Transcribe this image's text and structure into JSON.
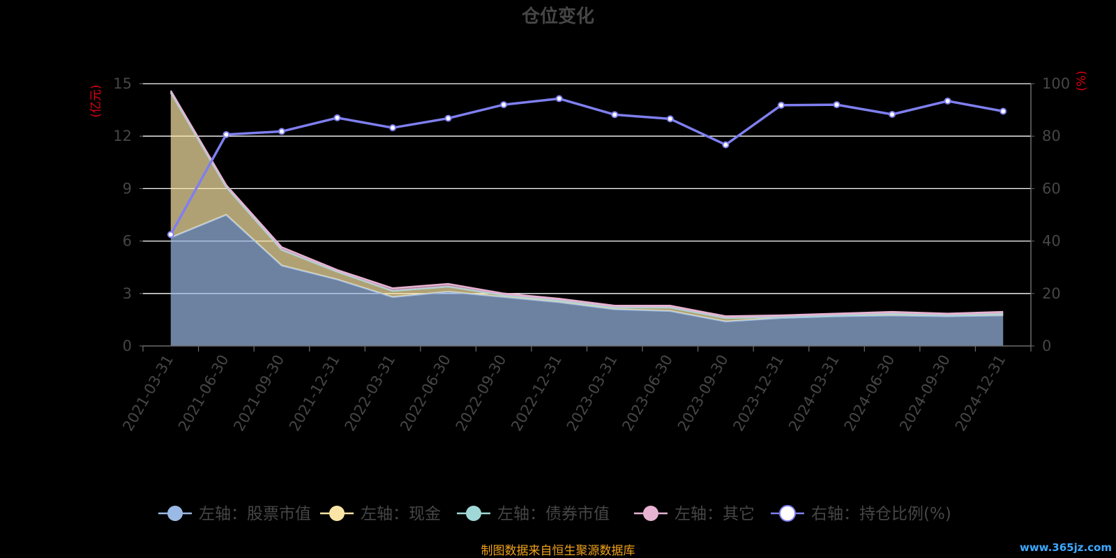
{
  "chart_data": {
    "type": "area",
    "title": "仓位变化",
    "left_unit": "(亿元)",
    "right_unit": "(%)",
    "categories": [
      "2021-03-31",
      "2021-06-30",
      "2021-09-30",
      "2021-12-31",
      "2022-03-31",
      "2022-06-30",
      "2022-09-30",
      "2022-12-31",
      "2023-03-31",
      "2023-06-30",
      "2023-09-30",
      "2023-12-31",
      "2024-03-31",
      "2024-06-30",
      "2024-09-30",
      "2024-12-31"
    ],
    "y_left": {
      "min": 0,
      "max": 15,
      "ticks": [
        "0",
        "3",
        "6",
        "9",
        "12",
        "15"
      ]
    },
    "y_right": {
      "min": 0,
      "max": 100,
      "ticks": [
        "0",
        "20",
        "40",
        "60",
        "80",
        "100"
      ]
    },
    "series": [
      {
        "name": "左轴：股票市值",
        "axis": "left",
        "kind": "area",
        "color": "#9bb9e5",
        "values": [
          6.2,
          7.5,
          4.6,
          3.8,
          2.8,
          3.1,
          2.8,
          2.5,
          2.1,
          2.0,
          1.4,
          1.6,
          1.7,
          1.75,
          1.7,
          1.75
        ]
      },
      {
        "name": "左轴：现金",
        "axis": "left",
        "kind": "area",
        "color": "#fbe5a6",
        "values": [
          8.3,
          1.6,
          0.9,
          0.45,
          0.35,
          0.3,
          0.1,
          0.1,
          0.1,
          0.2,
          0.2,
          0.05,
          0.05,
          0.1,
          0.05,
          0.1
        ]
      },
      {
        "name": "左轴：债券市值",
        "axis": "left",
        "kind": "area",
        "color": "#9fd8d7",
        "values": [
          0,
          0,
          0,
          0,
          0,
          0,
          0,
          0,
          0,
          0,
          0,
          0,
          0,
          0,
          0,
          0
        ]
      },
      {
        "name": "左轴：其它",
        "axis": "left",
        "kind": "area",
        "color": "#e8b3d3",
        "values": [
          0.1,
          0.1,
          0.15,
          0.1,
          0.15,
          0.15,
          0.1,
          0.1,
          0.1,
          0.1,
          0.1,
          0.1,
          0.1,
          0.1,
          0.1,
          0.1
        ]
      },
      {
        "name": "右轴：持仓比例(%)",
        "axis": "right",
        "kind": "line",
        "color": "#7f7ff0",
        "values": [
          42.5,
          80.6,
          81.8,
          87.0,
          83.2,
          86.8,
          92.0,
          94.3,
          88.2,
          86.6,
          76.7,
          91.8,
          92.0,
          88.3,
          93.4,
          89.5
        ]
      }
    ],
    "legend_position": "bottom-center",
    "grid": true
  },
  "source_note": "制图数据来自恒生聚源数据库",
  "watermark": "www.365jz.com",
  "colors": {
    "background": "#000000",
    "text": "#464646",
    "grid": "#ffffff",
    "unit": "#e0000f",
    "source": "#f0a21a",
    "watermark": "#3ea8ff"
  }
}
